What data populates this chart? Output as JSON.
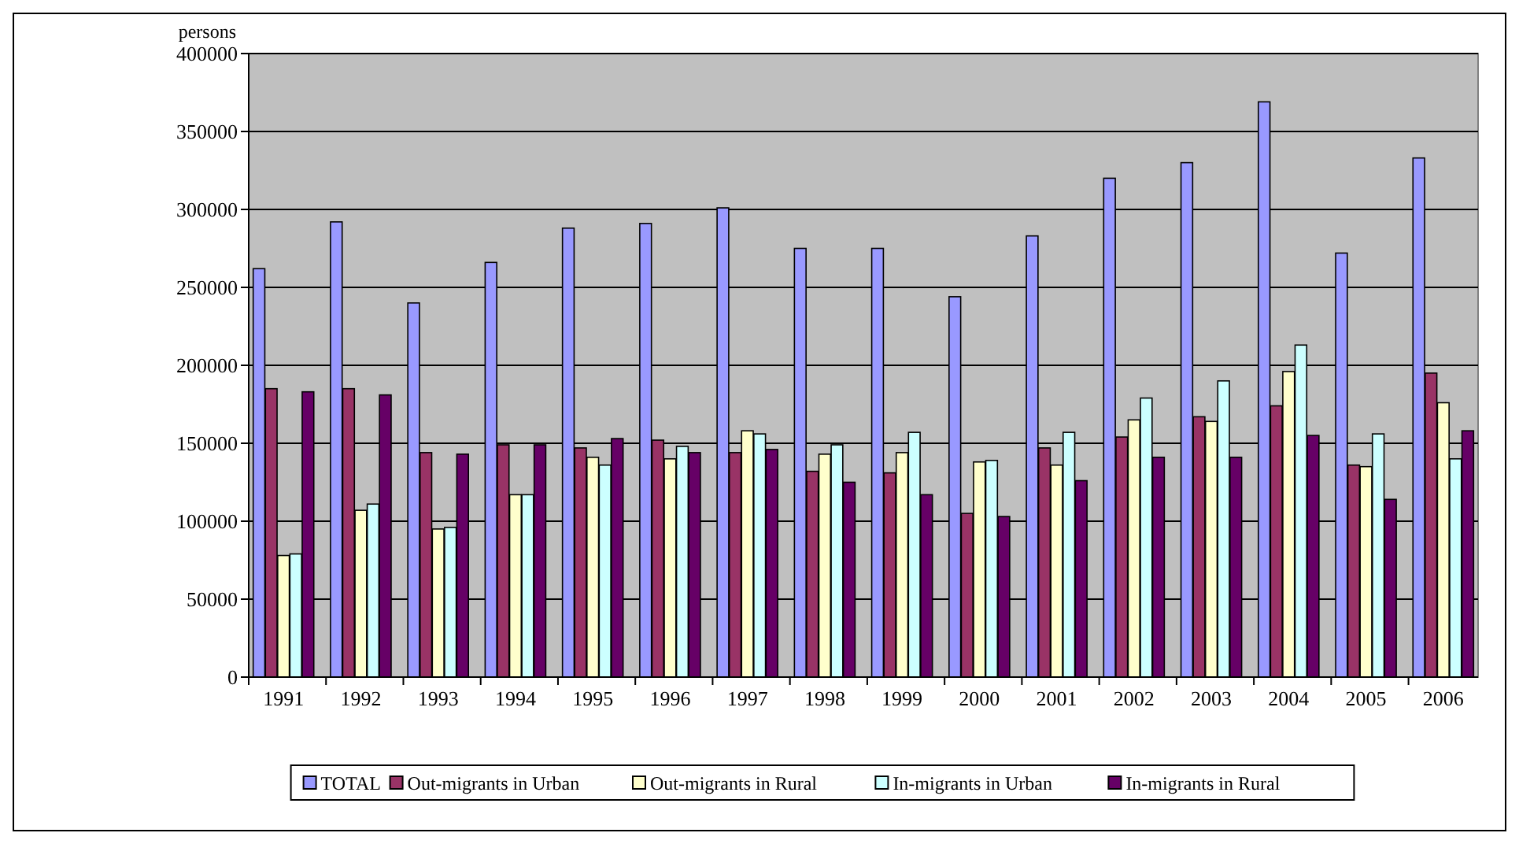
{
  "chart_data": {
    "type": "bar",
    "ylabel": "persons",
    "categories": [
      "1991",
      "1992",
      "1993",
      "1994",
      "1995",
      "1996",
      "1997",
      "1998",
      "1999",
      "2000",
      "2001",
      "2002",
      "2003",
      "2004",
      "2005",
      "2006"
    ],
    "series": [
      {
        "name": "TOTAL",
        "color": "#9999ff",
        "values": [
          262000,
          292000,
          240000,
          266000,
          288000,
          291000,
          301000,
          275000,
          275000,
          244000,
          283000,
          320000,
          330000,
          369000,
          272000,
          333000
        ]
      },
      {
        "name": "Out-migrants in Urban",
        "color": "#993366",
        "values": [
          185000,
          185000,
          144000,
          149000,
          147000,
          152000,
          144000,
          132000,
          131000,
          105000,
          147000,
          154000,
          167000,
          174000,
          136000,
          195000
        ]
      },
      {
        "name": "Out-migrants in Rural",
        "color": "#ffffcc",
        "values": [
          78000,
          107000,
          95000,
          117000,
          141000,
          140000,
          158000,
          143000,
          144000,
          138000,
          136000,
          165000,
          164000,
          196000,
          135000,
          176000
        ]
      },
      {
        "name": "In-migrants in Urban",
        "color": "#ccffff",
        "values": [
          79000,
          111000,
          96000,
          117000,
          136000,
          148000,
          156000,
          149000,
          157000,
          139000,
          157000,
          179000,
          190000,
          213000,
          156000,
          140000
        ]
      },
      {
        "name": "In-migrants in Rural",
        "color": "#660066",
        "values": [
          183000,
          181000,
          143000,
          149000,
          153000,
          144000,
          146000,
          125000,
          117000,
          103000,
          126000,
          141000,
          141000,
          155000,
          114000,
          158000
        ]
      }
    ],
    "ylim": [
      0,
      400000
    ],
    "yticks": [
      0,
      50000,
      100000,
      150000,
      200000,
      250000,
      300000,
      350000,
      400000
    ],
    "grid": "y",
    "legend": "bottom"
  }
}
